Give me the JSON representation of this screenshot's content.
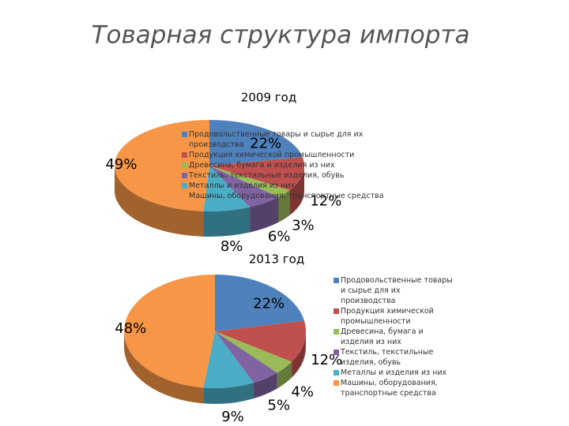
{
  "title": "Товарная структура импорта",
  "chart_data": [
    {
      "type": "pie",
      "title": "2009 год",
      "categories": [
        "Продовольственные товары и сырье для их производства",
        "Продукция химической промышленности",
        "Древесина, бумага и изделия из них",
        "Текстиль, текстильные изделия, обувь",
        "Металлы и изделия из них",
        "Машины, оборудования, транспортные средства"
      ],
      "values": [
        22,
        12,
        3,
        6,
        8,
        49
      ],
      "value_labels": [
        "22%",
        "12%",
        "3%",
        "6%",
        "8%",
        "49%"
      ],
      "colors": [
        "#4f81bd",
        "#c0504d",
        "#9bbb59",
        "#8064a2",
        "#4bacc6",
        "#f79646"
      ]
    },
    {
      "type": "pie",
      "title": "2013 год",
      "categories": [
        "Продовольственные товары и сырье для их производства",
        "Продукция химической промышленности",
        "Древесина, бумага и изделия из них",
        "Текстиль, текстильные изделия, обувь",
        "Металлы и изделия из них",
        "Машины, оборудования, транспортные средства"
      ],
      "values": [
        22,
        12,
        4,
        5,
        9,
        48
      ],
      "value_labels": [
        "22%",
        "12%",
        "4%",
        "5%",
        "9%",
        "48%"
      ],
      "colors": [
        "#4f81bd",
        "#c0504d",
        "#9bbb59",
        "#8064a2",
        "#4bacc6",
        "#f79646"
      ]
    }
  ]
}
